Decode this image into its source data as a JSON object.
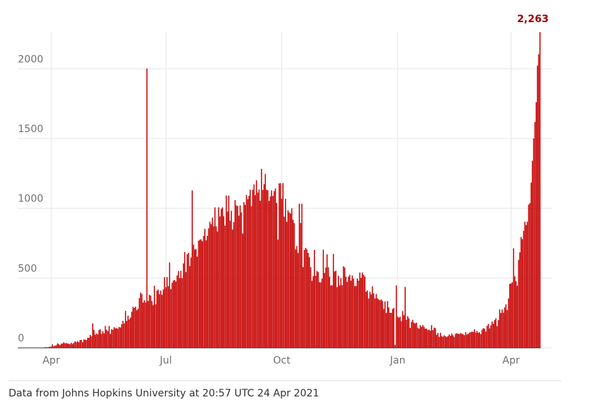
{
  "chart_data": {
    "type": "bar",
    "footer": "Data from Johns Hopkins University at 20:57 UTC 24 Apr 2021",
    "color": "#c70000",
    "grid": true,
    "ylim": [
      0,
      2263
    ],
    "yticks": [
      0,
      500,
      1000,
      1500,
      2000
    ],
    "categories": [
      null,
      null,
      null,
      null,
      null,
      null,
      null,
      null,
      null,
      null,
      null,
      null,
      null,
      null,
      null,
      null,
      null,
      null,
      null,
      null,
      null,
      null,
      null,
      null,
      null,
      null,
      "Apr",
      null,
      null,
      null,
      null,
      null,
      null,
      null,
      null,
      null,
      null,
      null,
      null,
      null,
      null,
      null,
      null,
      null,
      null,
      null,
      null,
      null,
      null,
      null,
      null,
      null,
      null,
      null,
      null,
      null,
      null,
      null,
      null,
      null,
      null,
      null,
      null,
      null,
      null,
      null,
      null,
      null,
      null,
      null,
      null,
      null,
      null,
      null,
      null,
      null,
      null,
      null,
      null,
      null,
      null,
      null,
      null,
      null,
      null,
      null,
      null,
      null,
      null,
      null,
      null,
      null,
      null,
      null,
      null,
      null,
      null,
      null,
      null,
      null,
      null,
      null,
      null,
      null,
      null,
      null,
      null,
      null,
      null,
      null,
      null,
      null,
      null,
      null,
      null,
      null,
      null,
      "Jul",
      null,
      null,
      null,
      null,
      null,
      null,
      null,
      null,
      null,
      null,
      null,
      null,
      null,
      null,
      null,
      null,
      null,
      null,
      null,
      null,
      null,
      null,
      null,
      null,
      null,
      null,
      null,
      null,
      null,
      null,
      null,
      null,
      null,
      null,
      null,
      null,
      null,
      null,
      null,
      null,
      null,
      null,
      null,
      null,
      null,
      null,
      null,
      null,
      null,
      null,
      null,
      null,
      null,
      null,
      null,
      null,
      null,
      null,
      null,
      null,
      null,
      null,
      null,
      null,
      null,
      null,
      null,
      null,
      null,
      null,
      null,
      null,
      null,
      null,
      null,
      null,
      null,
      null,
      null,
      null,
      null,
      null,
      null,
      null,
      null,
      null,
      null,
      null,
      null,
      null,
      null,
      "Oct",
      null,
      null,
      null,
      null,
      null,
      null,
      null,
      null,
      null,
      null,
      null,
      null,
      null,
      null,
      null,
      null,
      null,
      null,
      null,
      null,
      null,
      null,
      null,
      null,
      null,
      null,
      null,
      null,
      null,
      null,
      null,
      null,
      null,
      null,
      null,
      null,
      null,
      null,
      null,
      null,
      null,
      null,
      null,
      null,
      null,
      null,
      null,
      null,
      null,
      null,
      null,
      null,
      null,
      null,
      null,
      null,
      null,
      null,
      null,
      null,
      null,
      null,
      null,
      null,
      null,
      null,
      null,
      null,
      null,
      null,
      null,
      null,
      null,
      null,
      null,
      null,
      null,
      null,
      null,
      null,
      null,
      null,
      null,
      null,
      null,
      null,
      null,
      null,
      null,
      null,
      null,
      "Jan",
      null,
      null,
      null,
      null,
      null,
      null,
      null,
      null,
      null,
      null,
      null,
      null,
      null,
      null,
      null,
      null,
      null,
      null,
      null,
      null,
      null,
      null,
      null,
      null,
      null,
      null,
      null,
      null,
      null,
      null,
      null,
      null,
      null,
      null,
      null,
      null,
      null,
      null,
      null,
      null,
      null,
      null,
      null,
      null,
      null,
      null,
      null,
      null,
      null,
      null,
      null,
      null,
      null,
      null,
      null,
      null,
      null,
      null,
      null,
      null,
      null,
      null,
      null,
      null,
      null,
      null,
      null,
      null,
      null,
      null,
      null,
      null,
      null,
      null,
      null,
      null,
      null,
      null,
      null,
      null,
      null,
      null,
      null,
      null,
      null,
      null,
      null,
      null,
      null,
      "Apr",
      null,
      null,
      null,
      null,
      null,
      null,
      null,
      null,
      null,
      null,
      null,
      null,
      null,
      null,
      null,
      null,
      null,
      null,
      null,
      null,
      null,
      null,
      null
    ],
    "values": [
      0,
      0,
      0,
      0,
      0,
      0,
      1,
      0,
      1,
      0,
      0,
      0,
      1,
      0,
      0,
      1,
      1,
      2,
      1,
      2,
      3,
      4,
      5,
      3,
      6,
      8,
      9,
      25,
      12,
      16,
      18,
      32,
      28,
      20,
      30,
      31,
      40,
      33,
      35,
      31,
      30,
      26,
      37,
      28,
      36,
      47,
      40,
      48,
      40,
      56,
      57,
      40,
      60,
      59,
      56,
      73,
      72,
      93,
      83,
      175,
      128,
      94,
      103,
      97,
      128,
      134,
      100,
      120,
      104,
      157,
      130,
      120,
      157,
      100,
      134,
      130,
      148,
      140,
      142,
      137,
      150,
      146,
      170,
      194,
      175,
      265,
      193,
      230,
      204,
      217,
      260,
      294,
      287,
      295,
      270,
      280,
      357,
      396,
      386,
      325,
      341,
      325,
      2003,
      336,
      380,
      375,
      336,
      306,
      445,
      312,
      410,
      418,
      384,
      410,
      380,
      418,
      507,
      434,
      507,
      442,
      613,
      421,
      467,
      482,
      487,
      475,
      519,
      551,
      500,
      553,
      500,
      606,
      687,
      543,
      671,
      681,
      587,
      648,
      1129,
      740,
      705,
      708,
      654,
      768,
      775,
      779,
      764,
      803,
      853,
      771,
      803,
      857,
      904,
      886,
      933,
      871,
      1007,
      871,
      834,
      1007,
      942,
      996,
      1007,
      944,
      876,
      1092,
      977,
      1092,
      912,
      983,
      848,
      901,
      1059,
      1021,
      1017,
      948,
      1021,
      971,
      819,
      1045,
      1025,
      1096,
      1066,
      1089,
      1133,
      1016,
      1133,
      1172,
      1095,
      1201,
      1114,
      1136,
      1054,
      1283,
      1132,
      1174,
      1247,
      1133,
      1130,
      1053,
      1085,
      1129,
      1089,
      1124,
      1142,
      1039,
      776,
      1179,
      1181,
      1069,
      1181,
      940,
      1069,
      903,
      986,
      971,
      963,
      1000,
      918,
      895,
      706,
      730,
      680,
      1033,
      895,
      1033,
      579,
      702,
      717,
      706,
      680,
      650,
      578,
      480,
      514,
      702,
      517,
      551,
      543,
      470,
      470,
      496,
      704,
      537,
      576,
      670,
      577,
      510,
      447,
      449,
      673,
      547,
      554,
      435,
      516,
      447,
      500,
      449,
      585,
      576,
      510,
      473,
      511,
      524,
      482,
      518,
      496,
      443,
      443,
      497,
      482,
      540,
      501,
      540,
      524,
      511,
      402,
      411,
      354,
      402,
      383,
      442,
      391,
      354,
      387,
      355,
      347,
      341,
      347,
      336,
      279,
      333,
      251,
      336,
      290,
      251,
      251,
      279,
      286,
      20,
      448,
      224,
      217,
      223,
      191,
      264,
      234,
      437,
      201,
      228,
      212,
      143,
      186,
      201,
      180,
      175,
      181,
      145,
      137,
      162,
      151,
      164,
      151,
      137,
      138,
      127,
      131,
      123,
      163,
      127,
      145,
      141,
      94,
      107,
      78,
      108,
      84,
      80,
      90,
      83,
      78,
      85,
      96,
      87,
      103,
      90,
      78,
      101,
      105,
      101,
      100,
      106,
      101,
      98,
      91,
      112,
      95,
      100,
      109,
      112,
      117,
      114,
      133,
      110,
      121,
      108,
      112,
      99,
      130,
      141,
      138,
      117,
      158,
      172,
      140,
      161,
      188,
      172,
      199,
      212,
      156,
      199,
      275,
      250,
      275,
      251,
      290,
      312,
      271,
      354,
      459,
      462,
      469,
      714,
      513,
      478,
      446,
      631,
      685,
      795,
      780,
      839,
      904,
      880,
      904,
      1027,
      1038,
      1185,
      1341,
      1501,
      1619,
      1761,
      2023,
      2104,
      2263
    ]
  }
}
